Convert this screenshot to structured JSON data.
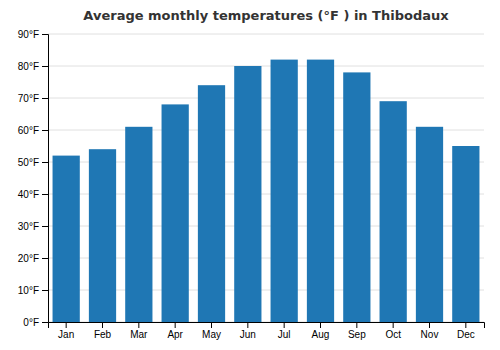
{
  "chart_data": {
    "type": "bar",
    "title": "Average monthly temperatures (°F ) in Thibodaux",
    "categories": [
      "Jan",
      "Feb",
      "Mar",
      "Apr",
      "May",
      "Jun",
      "Jul",
      "Aug",
      "Sep",
      "Oct",
      "Nov",
      "Dec"
    ],
    "values": [
      52,
      54,
      61,
      68,
      74,
      80,
      82,
      82,
      78,
      69,
      61,
      55
    ],
    "ylim": [
      0,
      90
    ],
    "yticks": [
      {
        "value": 0,
        "label": "0°F"
      },
      {
        "value": 10,
        "label": "10°F"
      },
      {
        "value": 20,
        "label": "20°F"
      },
      {
        "value": 30,
        "label": "30°F"
      },
      {
        "value": 40,
        "label": "40°F"
      },
      {
        "value": 50,
        "label": "50°F"
      },
      {
        "value": 60,
        "label": "60°F"
      },
      {
        "value": 70,
        "label": "70°F"
      },
      {
        "value": 80,
        "label": "80°F"
      },
      {
        "value": 90,
        "label": "90°F"
      }
    ],
    "grid": true
  }
}
